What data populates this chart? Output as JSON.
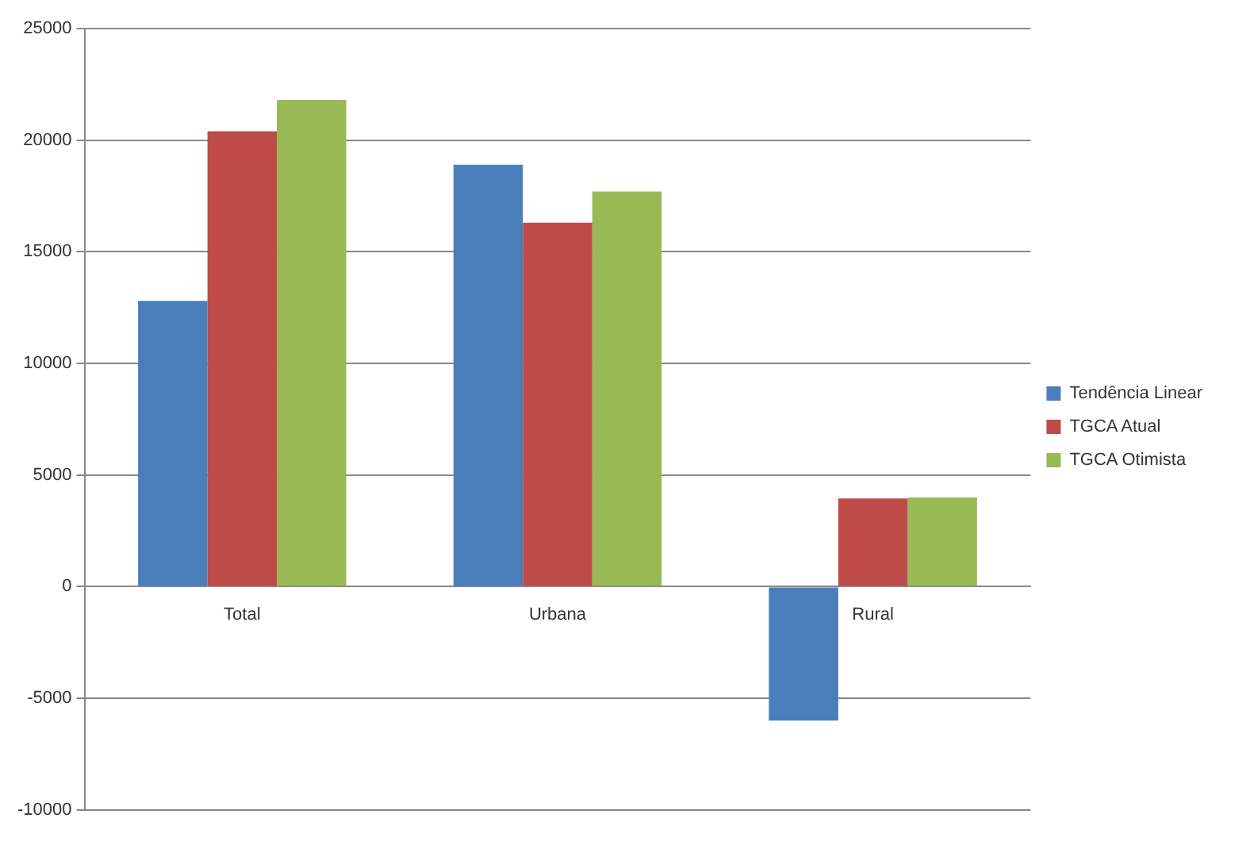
{
  "chart_data": {
    "type": "bar",
    "categories": [
      "Total",
      "Urbana",
      "Rural"
    ],
    "series": [
      {
        "name": "Tendência Linear",
        "color": "#4a7ebb",
        "values": [
          12800,
          18900,
          -6000
        ]
      },
      {
        "name": "TGCA Atual",
        "color": "#be4b48",
        "values": [
          20400,
          16300,
          3950
        ]
      },
      {
        "name": "TGCA Otimista",
        "color": "#98b954",
        "values": [
          21800,
          17700,
          4000
        ]
      }
    ],
    "ylim": [
      -10000,
      25000
    ],
    "yticks": [
      -10000,
      -5000,
      0,
      5000,
      10000,
      15000,
      20000,
      25000
    ],
    "grid": "y",
    "legend": "right"
  }
}
